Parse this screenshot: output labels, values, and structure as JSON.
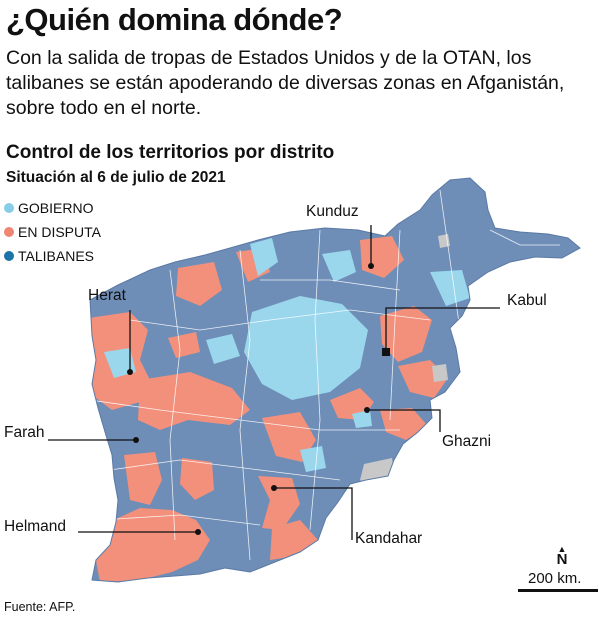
{
  "headline": "¿Quién domina dónde?",
  "deck": "Con la salida de tropas de Estados Unidos y de la OTAN, los talibanes se están apoderando de diversas zonas en Afganistán, sobre todo en el norte.",
  "map_title": "Control de los territorios por distrito",
  "map_date": "Situación al 6 de julio de 2021",
  "legend": [
    {
      "label": "GOBIERNO",
      "color": "#86cde8"
    },
    {
      "label": "EN DISPUTA",
      "color": "#f08570"
    },
    {
      "label": "TALIBANES",
      "color": "#1c73a8"
    }
  ],
  "colors": {
    "taliban_area": "#6e8db7",
    "government_area": "#9ad7ed",
    "disputed_area": "#f2907b",
    "no_data_area": "#c8c8c8",
    "leader_line": "#111111"
  },
  "cities": {
    "kunduz": "Kunduz",
    "herat": "Herat",
    "kabul": "Kabul",
    "farah": "Farah",
    "ghazni": "Ghazni",
    "helmand": "Helmand",
    "kandahar": "Kandahar"
  },
  "north_label": "N",
  "scale_label": "200 km.",
  "source": "Fuente: AFP."
}
